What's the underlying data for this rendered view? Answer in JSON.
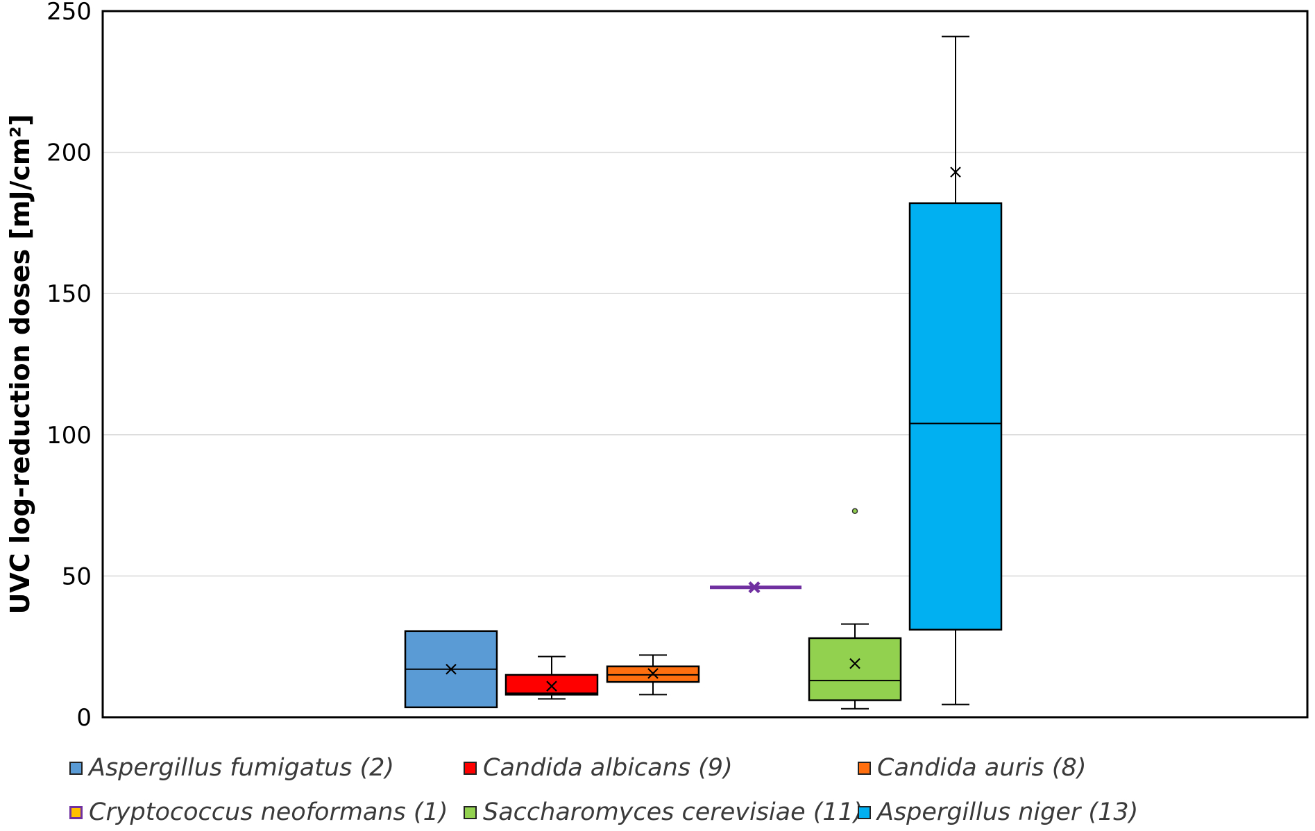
{
  "chart_data": {
    "type": "box",
    "title": "",
    "xlabel": "",
    "ylabel": "UVC log-reduction doses [mJ/cm²]",
    "ylim": [
      0,
      250
    ],
    "yticks": [
      0,
      50,
      100,
      150,
      200,
      250
    ],
    "ytick_labels": [
      "0",
      "50",
      "100",
      "150",
      "200",
      "250"
    ],
    "grid": "horizontal",
    "legend_position": "bottom",
    "series": [
      {
        "name": "Aspergillus fumigatus (2)",
        "color": "#5B9BD5",
        "min": 3.5,
        "q1": 3.5,
        "median": 17,
        "q3": 30.5,
        "max": 30.5,
        "mean": 17,
        "outliers": []
      },
      {
        "name": "Candida albicans (9)",
        "color": "#FF0000",
        "min": 6.5,
        "q1": 8,
        "median": 8.5,
        "q3": 15,
        "max": 21.5,
        "mean": 11,
        "outliers": []
      },
      {
        "name": "Candida auris (8)",
        "color": "#FF6F0F",
        "min": 8,
        "q1": 12.5,
        "median": 15,
        "q3": 18,
        "max": 22,
        "mean": 15.5,
        "outliers": []
      },
      {
        "name": "Cryptococcus neoformans (1)",
        "color": "#7030A0",
        "swatch_fill": "#FFC000",
        "min": 46,
        "q1": 46,
        "median": 46,
        "q3": 46,
        "max": 46,
        "mean": 46,
        "outliers": []
      },
      {
        "name": "Saccharomyces cerevisiae (11)",
        "color": "#92D050",
        "min": 3,
        "q1": 6,
        "median": 13,
        "q3": 28,
        "max": 33,
        "mean": 19,
        "outliers": [
          73
        ]
      },
      {
        "name": "Aspergillus niger (13)",
        "color": "#00B0F0",
        "min": 4.5,
        "q1": 31,
        "median": 104,
        "q3": 182,
        "max": 241,
        "mean": 193,
        "outliers": []
      }
    ]
  }
}
